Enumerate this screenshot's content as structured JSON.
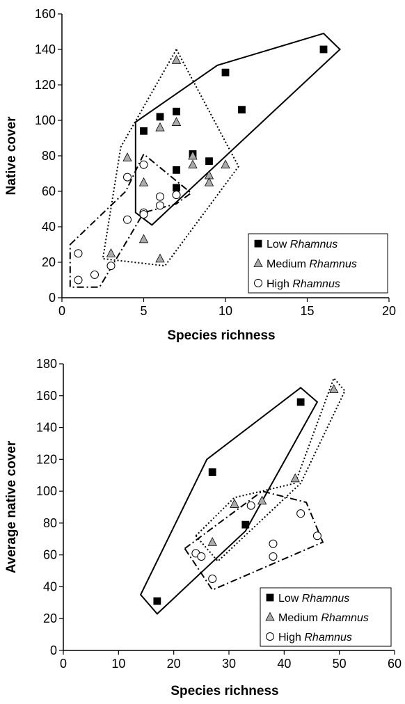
{
  "chart_data": [
    {
      "type": "scatter",
      "xlabel": "Species richness",
      "ylabel": "Native cover",
      "xlim": [
        0,
        20
      ],
      "ylim": [
        0,
        160
      ],
      "xticks": [
        "0",
        "5",
        "10",
        "15",
        "20"
      ],
      "yticks": [
        "0",
        "20",
        "40",
        "60",
        "80",
        "100",
        "120",
        "140",
        "160"
      ],
      "legend_position": "bottom-right",
      "grid": false,
      "series": [
        {
          "name": "Low Rhamnus",
          "legend_prefix": "Low ",
          "legend_italic": "Rhamnus",
          "marker": "square",
          "color": "#000000",
          "hull_style": "solid",
          "points": [
            [
              5,
              94
            ],
            [
              6,
              102
            ],
            [
              7,
              105
            ],
            [
              7,
              72
            ],
            [
              7,
              62
            ],
            [
              8,
              81
            ],
            [
              9,
              77
            ],
            [
              10,
              127
            ],
            [
              11,
              106
            ],
            [
              16,
              140
            ]
          ],
          "hull": [
            [
              4.5,
              99
            ],
            [
              9.5,
              131
            ],
            [
              16,
              149
            ],
            [
              17,
              140
            ],
            [
              5.5,
              41
            ],
            [
              4.5,
              48
            ]
          ]
        },
        {
          "name": "Medium Rhamnus",
          "legend_prefix": "Medium ",
          "legend_italic": "Rhamnus",
          "marker": "triangle",
          "color": "#aaaaaa",
          "hull_style": "dotted",
          "points": [
            [
              3,
              25
            ],
            [
              4,
              79
            ],
            [
              5,
              65
            ],
            [
              5,
              33
            ],
            [
              6,
              22
            ],
            [
              6,
              96
            ],
            [
              7,
              99
            ],
            [
              7,
              134
            ],
            [
              8,
              80
            ],
            [
              8,
              75
            ],
            [
              9,
              69
            ],
            [
              9,
              65
            ],
            [
              10,
              75
            ]
          ],
          "hull": [
            [
              7,
              140
            ],
            [
              3.6,
              85
            ],
            [
              2.5,
              22
            ],
            [
              6.3,
              18
            ],
            [
              10.8,
              74
            ]
          ]
        },
        {
          "name": "High Rhamnus",
          "legend_prefix": "High ",
          "legend_italic": "Rhamnus",
          "marker": "circle",
          "color": "#ffffff",
          "hull_style": "dashdot",
          "points": [
            [
              1,
              25
            ],
            [
              1,
              10
            ],
            [
              2,
              13
            ],
            [
              3,
              18
            ],
            [
              4,
              44
            ],
            [
              4,
              68
            ],
            [
              5,
              75
            ],
            [
              5,
              48
            ],
            [
              5,
              47
            ],
            [
              6,
              57
            ],
            [
              6,
              52
            ],
            [
              7,
              58
            ]
          ],
          "hull": [
            [
              0.5,
              30
            ],
            [
              3.9,
              60
            ],
            [
              5,
              81
            ],
            [
              7.9,
              59
            ],
            [
              7,
              53
            ],
            [
              5,
              48
            ],
            [
              2.3,
              6
            ],
            [
              0.5,
              6
            ]
          ]
        }
      ]
    },
    {
      "type": "scatter",
      "xlabel": "Species richness",
      "ylabel": "Average native cover",
      "xlim": [
        0,
        60
      ],
      "ylim": [
        0,
        180
      ],
      "xticks": [
        "0",
        "10",
        "20",
        "30",
        "40",
        "50",
        "60"
      ],
      "yticks": [
        "0",
        "20",
        "40",
        "60",
        "80",
        "100",
        "120",
        "140",
        "160",
        "180"
      ],
      "legend_position": "bottom-right",
      "grid": false,
      "series": [
        {
          "name": "Low Rhamnus",
          "legend_prefix": "Low ",
          "legend_italic": "Rhamnus",
          "marker": "square",
          "color": "#000000",
          "hull_style": "solid",
          "points": [
            [
              17,
              31
            ],
            [
              27,
              112
            ],
            [
              33,
              79
            ],
            [
              43,
              156
            ]
          ],
          "hull": [
            [
              26,
              120
            ],
            [
              43,
              165
            ],
            [
              46,
              156
            ],
            [
              33,
              75
            ],
            [
              17,
              23
            ],
            [
              14,
              35
            ]
          ]
        },
        {
          "name": "Medium Rhamnus",
          "legend_prefix": "Medium ",
          "legend_italic": "Rhamnus",
          "marker": "triangle",
          "color": "#aaaaaa",
          "hull_style": "dotted",
          "points": [
            [
              27,
              68
            ],
            [
              31,
              92
            ],
            [
              36,
              94
            ],
            [
              42,
              108
            ],
            [
              49,
              164
            ]
          ],
          "hull": [
            [
              24,
              72
            ],
            [
              31,
              96
            ],
            [
              42,
              105
            ],
            [
              49,
              171
            ],
            [
              51,
              163
            ],
            [
              43,
              105
            ],
            [
              28,
              56
            ]
          ]
        },
        {
          "name": "High Rhamnus",
          "legend_prefix": "High ",
          "legend_italic": "Rhamnus",
          "marker": "circle",
          "color": "#ffffff",
          "hull_style": "dashdot",
          "points": [
            [
              24,
              61
            ],
            [
              25,
              59
            ],
            [
              27,
              45
            ],
            [
              34,
              91
            ],
            [
              38,
              67
            ],
            [
              38,
              59
            ],
            [
              43,
              86
            ],
            [
              46,
              72
            ]
          ],
          "hull": [
            [
              22,
              64
            ],
            [
              36,
              100
            ],
            [
              44,
              93
            ],
            [
              47,
              68
            ],
            [
              27,
              38
            ]
          ]
        }
      ]
    }
  ]
}
